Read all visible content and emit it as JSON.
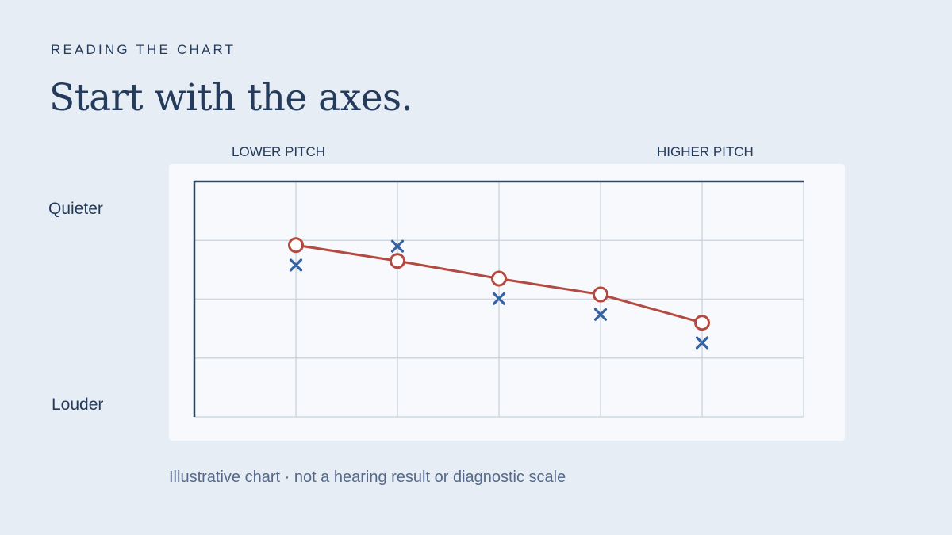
{
  "header": {
    "eyebrow": "READING THE CHART",
    "title": "Start with the axes."
  },
  "caption": "Illustrative chart · not a hearing result or diagnostic scale",
  "colors": {
    "background": "#e6edf5",
    "panel": "#f7f9fc",
    "text": "#253b5c",
    "grid": "#cdd7e2",
    "axis": "#2d4560",
    "series_circle": "#b34a42",
    "series_x": "#3563a4"
  },
  "chart_data": {
    "type": "line",
    "x_labels": {
      "left": "LOWER PITCH",
      "right": "HIGHER PITCH"
    },
    "y_labels": {
      "top": "Quieter",
      "bottom": "Louder"
    },
    "x_tick_labels": [],
    "y_tick_labels": [],
    "xlim": [
      0,
      6
    ],
    "ylim": [
      0,
      4
    ],
    "y_direction": "inverted",
    "grid": true,
    "series": [
      {
        "marker": "circle",
        "connected": true,
        "x": [
          1,
          2,
          3,
          4,
          5
        ],
        "y": [
          1.08,
          1.35,
          1.65,
          1.92,
          2.4
        ]
      },
      {
        "marker": "x",
        "connected": false,
        "x": [
          1,
          2,
          3,
          4,
          5
        ],
        "y": [
          1.42,
          1.1,
          1.99,
          2.26,
          2.74
        ]
      }
    ]
  }
}
